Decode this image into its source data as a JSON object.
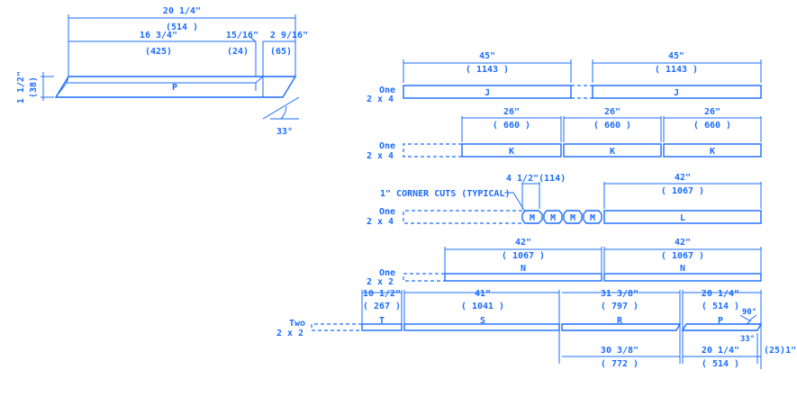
{
  "colors": {
    "line": "#1a6cff",
    "background": "#ffffff"
  },
  "detail": {
    "dim_total_in": "20 1/4\"",
    "dim_total_mm": "(514 )",
    "dim_main_in": "16 3/4\"",
    "dim_main_mm": "(425)",
    "dim_mid_in": "15/16\"",
    "dim_mid_mm": "(24)",
    "dim_end_in": "2 9/16\"",
    "dim_end_mm": "(65)",
    "dim_height_in": "1 1/2\"",
    "dim_height_mm": "(38)",
    "part_label": "P",
    "angle": "33°"
  },
  "rows": {
    "row1": {
      "qty": "One",
      "stock": "2 x 4",
      "dim1_in": "45\"",
      "dim1_mm": "( 1143 )",
      "dim2_in": "45\"",
      "dim2_mm": "( 1143 )",
      "part1": "J",
      "part2": "J"
    },
    "row2": {
      "qty": "One",
      "stock": "2 x 4",
      "dim1_in": "26\"",
      "dim1_mm": "( 660 )",
      "dim2_in": "26\"",
      "dim2_mm": "( 660 )",
      "dim3_in": "26\"",
      "dim3_mm": "( 660 )",
      "part1": "K",
      "part2": "K",
      "part3": "K"
    },
    "row3": {
      "qty": "One",
      "stock": "2 x 4",
      "corner_note": "1\" CORNER CUTS (TYPICAL)",
      "m_dim": "4 1/2\"(114)",
      "m1": "M",
      "m2": "M",
      "m3": "M",
      "m4": "M",
      "dim_in": "42\"",
      "dim_mm": "( 1067 )",
      "part_l": "L"
    },
    "row4": {
      "qty": "One",
      "stock": "2 x 2",
      "dim1_in": "42\"",
      "dim1_mm": "( 1067 )",
      "dim2_in": "42\"",
      "dim2_mm": "( 1067 )",
      "part1": "N",
      "part2": "N"
    },
    "row5": {
      "qty": "Two",
      "stock": "2 x 2",
      "t_in": "10 1/2\"",
      "t_mm": "( 267 )",
      "s_in": "41\"",
      "s_mm": "( 1041 )",
      "r_in": "31 3/8\"",
      "r_mm": "( 797 )",
      "p_in": "20 1/4\"",
      "p_mm": "( 514 )",
      "part_t": "T",
      "part_s": "S",
      "part_r": "R",
      "part_p": "P",
      "angle_90": "90°",
      "angle_33": "33°",
      "bottom_r_in": "30 3/8\"",
      "bottom_r_mm": "( 772 )",
      "bottom_p_in": "20 1/4\"",
      "bottom_p_mm": "( 514 )",
      "end_dim": "(25)1\""
    }
  }
}
